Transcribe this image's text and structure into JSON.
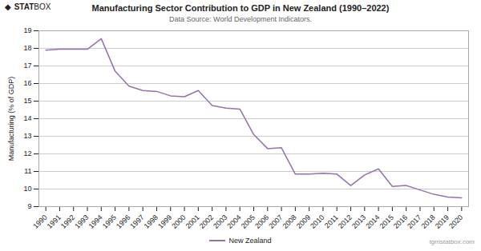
{
  "chart_data": {
    "type": "line",
    "title": "Manufacturing Sector Contribution to GDP in New Zealand (1990–2022)",
    "subtitle": "Data Source: World Development Indicators.",
    "ylabel": "Manufacturing (% of GDP)",
    "x": [
      1990,
      1991,
      1992,
      1993,
      1994,
      1995,
      1996,
      1997,
      1998,
      1999,
      2000,
      2001,
      2002,
      2003,
      2004,
      2005,
      2006,
      2007,
      2008,
      2009,
      2010,
      2011,
      2012,
      2013,
      2014,
      2015,
      2016,
      2017,
      2018,
      2019,
      2020
    ],
    "series": [
      {
        "name": "New Zealand",
        "color": "#9370B0",
        "values": [
          17.9,
          17.95,
          17.95,
          17.95,
          18.55,
          16.7,
          15.85,
          15.6,
          15.55,
          15.3,
          15.25,
          15.6,
          14.75,
          14.6,
          14.55,
          13.1,
          12.3,
          12.35,
          10.85,
          10.85,
          10.9,
          10.85,
          10.2,
          10.8,
          11.15,
          10.15,
          10.2,
          9.95,
          9.7,
          9.55,
          9.5
        ]
      }
    ],
    "xlim": [
      1989.5,
      2020.5
    ],
    "xticks": [
      1990,
      1991,
      1992,
      1993,
      1994,
      1995,
      1996,
      1997,
      1998,
      1999,
      2000,
      2001,
      2002,
      2003,
      2004,
      2005,
      2006,
      2007,
      2008,
      2009,
      2010,
      2011,
      2012,
      2013,
      2014,
      2015,
      2016,
      2017,
      2018,
      2019,
      2020
    ],
    "ylim": [
      9,
      19
    ],
    "yticks": [
      9,
      10,
      11,
      12,
      13,
      14,
      15,
      16,
      17,
      18,
      19
    ],
    "grid": true,
    "legend": "bottom",
    "annotations": [
      "◆",
      "STAT",
      "BOX",
      "tgmstatbox.com"
    ]
  }
}
